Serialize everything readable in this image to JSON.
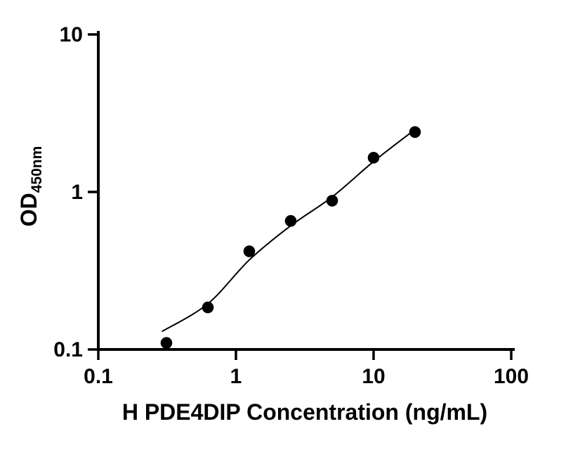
{
  "chart_data": {
    "type": "scatter",
    "title": "",
    "xlabel": "H PDE4DIP Concentration (ng/mL)",
    "ylabel": "OD",
    "ylabel_subscript": "450nm",
    "x_scale": "log",
    "y_scale": "log",
    "xlim": [
      0.1,
      100
    ],
    "ylim": [
      0.1,
      10
    ],
    "x_ticks": [
      0.1,
      1,
      10,
      100
    ],
    "x_tick_labels": [
      "0.1",
      "1",
      "10",
      "100"
    ],
    "y_ticks": [
      0.1,
      1,
      10
    ],
    "y_tick_labels": [
      "0.1",
      "1",
      "10"
    ],
    "grid": "off",
    "legend": "none",
    "points": {
      "x": [
        0.3125,
        0.625,
        1.25,
        2.5,
        5,
        10,
        20
      ],
      "y": [
        0.11,
        0.185,
        0.42,
        0.655,
        0.88,
        1.65,
        2.4
      ]
    },
    "fit_curve": {
      "x": [
        0.29,
        0.625,
        1.25,
        2.5,
        5,
        10,
        19.5
      ],
      "y": [
        0.13,
        0.195,
        0.37,
        0.61,
        0.93,
        1.56,
        2.45
      ]
    },
    "marker_color": "#000000",
    "line_color": "#000000",
    "axis_color": "#000000",
    "background": "#ffffff"
  }
}
